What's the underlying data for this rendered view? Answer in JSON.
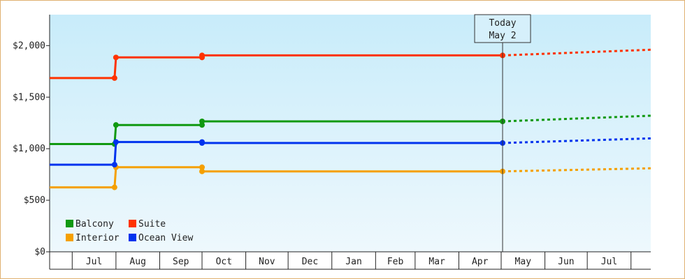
{
  "chart_data": {
    "type": "line",
    "title": "",
    "xlabel": "",
    "ylabel": "",
    "ylim": [
      0,
      2300
    ],
    "y_ticks": [
      {
        "value": 0,
        "label": "$0"
      },
      {
        "value": 500,
        "label": "$500"
      },
      {
        "value": 1000,
        "label": "$1,000"
      },
      {
        "value": 1500,
        "label": "$1,500"
      },
      {
        "value": 2000,
        "label": "$2,000"
      }
    ],
    "months": [
      {
        "label": "Jul",
        "start": "2024-07-01",
        "end": "2024-08-01"
      },
      {
        "label": "Aug",
        "start": "2024-08-01",
        "end": "2024-09-01"
      },
      {
        "label": "Sep",
        "start": "2024-09-01",
        "end": "2024-10-01"
      },
      {
        "label": "Oct",
        "start": "2024-10-01",
        "end": "2024-11-01"
      },
      {
        "label": "Nov",
        "start": "2024-11-01",
        "end": "2024-12-01"
      },
      {
        "label": "Dec",
        "start": "2024-12-01",
        "end": "2025-01-01"
      },
      {
        "label": "Jan",
        "start": "2025-01-01",
        "end": "2025-02-01"
      },
      {
        "label": "Feb",
        "start": "2025-02-01",
        "end": "2025-03-01"
      },
      {
        "label": "Mar",
        "start": "2025-03-01",
        "end": "2025-04-01"
      },
      {
        "label": "Apr",
        "start": "2025-04-01",
        "end": "2025-05-01"
      },
      {
        "label": "May",
        "start": "2025-05-01",
        "end": "2025-06-01"
      },
      {
        "label": "Jun",
        "start": "2025-06-01",
        "end": "2025-07-01"
      },
      {
        "label": "Jul",
        "start": "2025-07-01",
        "end": "2025-08-01"
      }
    ],
    "x_range": [
      "2024-06-15",
      "2025-08-15"
    ],
    "today": {
      "line1": "Today",
      "line2": "May 2",
      "date": "2025-05-02"
    },
    "legend_position": "bottom-left",
    "series": [
      {
        "name": "Balcony",
        "color": "#119911",
        "points": [
          {
            "x": "2024-06-15",
            "y": 1045
          },
          {
            "x": "2024-07-31",
            "y": 1045
          },
          {
            "x": "2024-08-01",
            "y": 1230
          },
          {
            "x": "2024-10-01",
            "y": 1230
          },
          {
            "x": "2024-10-01",
            "y": 1265
          },
          {
            "x": "2025-05-02",
            "y": 1265
          }
        ],
        "forecast": [
          {
            "x": "2025-05-02",
            "y": 1265
          },
          {
            "x": "2025-08-15",
            "y": 1320
          }
        ]
      },
      {
        "name": "Suite",
        "color": "#ff3300",
        "points": [
          {
            "x": "2024-06-15",
            "y": 1685
          },
          {
            "x": "2024-07-31",
            "y": 1685
          },
          {
            "x": "2024-08-01",
            "y": 1885
          },
          {
            "x": "2024-10-01",
            "y": 1885
          },
          {
            "x": "2024-10-01",
            "y": 1905
          },
          {
            "x": "2025-05-02",
            "y": 1905
          }
        ],
        "forecast": [
          {
            "x": "2025-05-02",
            "y": 1905
          },
          {
            "x": "2025-08-15",
            "y": 1960
          }
        ]
      },
      {
        "name": "Interior",
        "color": "#f5a000",
        "points": [
          {
            "x": "2024-06-15",
            "y": 625
          },
          {
            "x": "2024-07-31",
            "y": 625
          },
          {
            "x": "2024-08-01",
            "y": 820
          },
          {
            "x": "2024-10-01",
            "y": 820
          },
          {
            "x": "2024-10-01",
            "y": 780
          },
          {
            "x": "2025-05-02",
            "y": 780
          }
        ],
        "forecast": [
          {
            "x": "2025-05-02",
            "y": 780
          },
          {
            "x": "2025-08-15",
            "y": 810
          }
        ]
      },
      {
        "name": "Ocean View",
        "color": "#0033ee",
        "points": [
          {
            "x": "2024-06-15",
            "y": 845
          },
          {
            "x": "2024-07-31",
            "y": 845
          },
          {
            "x": "2024-08-01",
            "y": 1065
          },
          {
            "x": "2024-10-01",
            "y": 1065
          },
          {
            "x": "2024-10-01",
            "y": 1055
          },
          {
            "x": "2025-05-02",
            "y": 1055
          }
        ],
        "forecast": [
          {
            "x": "2025-05-02",
            "y": 1055
          },
          {
            "x": "2025-08-15",
            "y": 1100
          }
        ]
      }
    ]
  }
}
